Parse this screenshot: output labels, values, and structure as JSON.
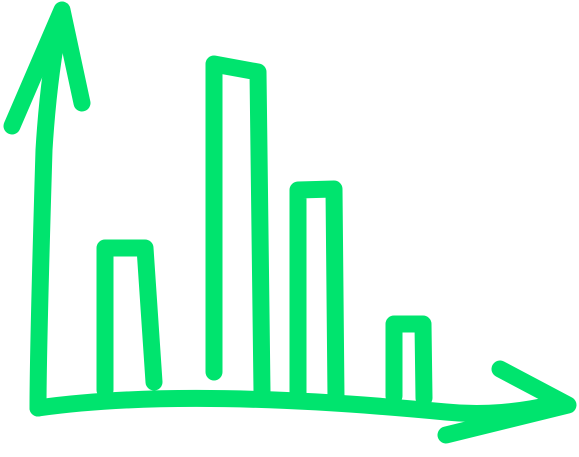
{
  "graphic": {
    "name": "bar-chart-icon",
    "style": "hand-drawn outline",
    "stroke_color": "#00E46E",
    "background_color": "#FFFFFF"
  }
}
